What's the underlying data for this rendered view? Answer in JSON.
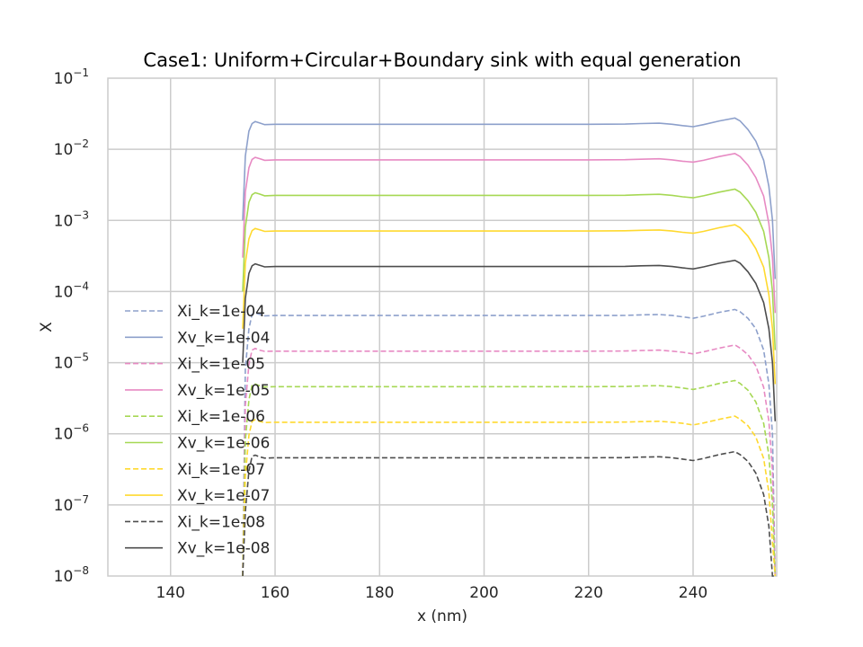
{
  "chart_data": {
    "type": "line",
    "title": "Case1: Uniform+Circular+Boundary sink with equal generation",
    "xlabel": "x (nm)",
    "ylabel": "X",
    "xlim": [
      128,
      256
    ],
    "ylim_log10": [
      -8,
      -1
    ],
    "y_scale": "log",
    "grid": true,
    "legend_position": "lower-left",
    "x_ticks": [
      140,
      160,
      180,
      200,
      220,
      240
    ],
    "y_tick_exponents": [
      -8,
      -7,
      -6,
      -5,
      -4,
      -3,
      -2,
      -1
    ],
    "x_profile": [
      153.8,
      154.3,
      155.0,
      155.6,
      156.2,
      157.0,
      158.0,
      160.0,
      165.0,
      180.0,
      200.0,
      220.0,
      227.0,
      230.0,
      233.5,
      236.0,
      238.0,
      240.0,
      242.0,
      245.0,
      248.0,
      249.0,
      250.5,
      252.0,
      253.5,
      254.5,
      255.2,
      255.7
    ],
    "series": [
      {
        "name": "Xi_k=1e-04",
        "style": "dashed",
        "color": "#8da0cb",
        "values": [
          1e-08,
          8e-06,
          3e-05,
          4.8e-05,
          5e-05,
          4.8e-05,
          4.55e-05,
          4.6e-05,
          4.6e-05,
          4.6e-05,
          4.6e-05,
          4.6e-05,
          4.62e-05,
          4.7e-05,
          4.75e-05,
          4.6e-05,
          4.4e-05,
          4.2e-05,
          4.5e-05,
          5.1e-05,
          5.6e-05,
          5.2e-05,
          4.2e-05,
          3e-05,
          1.5e-05,
          5e-06,
          1e-06,
          1e-08
        ]
      },
      {
        "name": "Xv_k=1e-04",
        "style": "solid",
        "color": "#8da0cb",
        "values": [
          0.001,
          0.008,
          0.018,
          0.023,
          0.0245,
          0.0235,
          0.0222,
          0.0225,
          0.0225,
          0.0225,
          0.0225,
          0.0225,
          0.0226,
          0.023,
          0.0233,
          0.0225,
          0.0215,
          0.0208,
          0.0222,
          0.025,
          0.0275,
          0.025,
          0.019,
          0.013,
          0.007,
          0.003,
          0.001,
          0.00015
        ]
      },
      {
        "name": "Xi_k=1e-05",
        "style": "dashed",
        "color": "#e78ac3",
        "values": [
          1e-08,
          2.5e-06,
          9.5e-06,
          1.5e-05,
          1.58e-05,
          1.5e-05,
          1.44e-05,
          1.45e-05,
          1.45e-05,
          1.45e-05,
          1.45e-05,
          1.45e-05,
          1.46e-05,
          1.48e-05,
          1.5e-05,
          1.45e-05,
          1.4e-05,
          1.33e-05,
          1.42e-05,
          1.6e-05,
          1.77e-05,
          1.6e-05,
          1.3e-05,
          9e-06,
          4.5e-06,
          1.5e-06,
          3e-07,
          1e-08
        ]
      },
      {
        "name": "Xv_k=1e-05",
        "style": "solid",
        "color": "#e78ac3",
        "values": [
          0.0003,
          0.0025,
          0.0055,
          0.0072,
          0.0077,
          0.0074,
          0.007,
          0.0071,
          0.0071,
          0.0071,
          0.0071,
          0.0071,
          0.00715,
          0.00725,
          0.00735,
          0.0071,
          0.0068,
          0.0066,
          0.007,
          0.0079,
          0.0087,
          0.0079,
          0.006,
          0.004,
          0.0022,
          0.0009,
          0.0003,
          5e-05
        ]
      },
      {
        "name": "Xi_k=1e-06",
        "style": "dashed",
        "color": "#a6d854",
        "values": [
          1e-08,
          8e-07,
          3e-06,
          4.8e-06,
          5e-06,
          4.75e-06,
          4.55e-06,
          4.6e-06,
          4.6e-06,
          4.6e-06,
          4.6e-06,
          4.6e-06,
          4.62e-06,
          4.7e-06,
          4.75e-06,
          4.6e-06,
          4.4e-06,
          4.2e-06,
          4.5e-06,
          5.1e-06,
          5.6e-06,
          5.1e-06,
          4.1e-06,
          2.8e-06,
          1.4e-06,
          5e-07,
          1e-07,
          1e-08
        ]
      },
      {
        "name": "Xv_k=1e-06",
        "style": "solid",
        "color": "#a6d854",
        "values": [
          0.0001,
          0.0008,
          0.0018,
          0.0023,
          0.00245,
          0.00235,
          0.00222,
          0.00225,
          0.00225,
          0.00225,
          0.00225,
          0.00225,
          0.00226,
          0.0023,
          0.00233,
          0.00225,
          0.00215,
          0.00208,
          0.00222,
          0.0025,
          0.00275,
          0.0025,
          0.0019,
          0.0013,
          0.0007,
          0.0003,
          0.0001,
          1.5e-05
        ]
      },
      {
        "name": "Xi_k=1e-07",
        "style": "dashed",
        "color": "#ffd92f",
        "values": [
          1e-08,
          2.5e-07,
          9.5e-07,
          1.5e-06,
          1.58e-06,
          1.5e-06,
          1.44e-06,
          1.45e-06,
          1.45e-06,
          1.45e-06,
          1.45e-06,
          1.45e-06,
          1.46e-06,
          1.48e-06,
          1.5e-06,
          1.45e-06,
          1.4e-06,
          1.33e-06,
          1.42e-06,
          1.6e-06,
          1.77e-06,
          1.6e-06,
          1.3e-06,
          9e-07,
          4.5e-07,
          1.5e-07,
          3e-08,
          1e-08
        ]
      },
      {
        "name": "Xv_k=1e-07",
        "style": "solid",
        "color": "#ffd92f",
        "values": [
          3e-05,
          0.00025,
          0.00055,
          0.00072,
          0.00077,
          0.00074,
          0.0007,
          0.00071,
          0.00071,
          0.00071,
          0.00071,
          0.00071,
          0.000715,
          0.000725,
          0.000735,
          0.00071,
          0.00068,
          0.00066,
          0.0007,
          0.00079,
          0.00087,
          0.00079,
          0.0006,
          0.0004,
          0.00022,
          9e-05,
          3e-05,
          5e-06
        ]
      },
      {
        "name": "Xi_k=1e-08",
        "style": "dashed",
        "color": "#4d4d4d",
        "values": [
          1e-08,
          8e-08,
          3e-07,
          4.8e-07,
          5e-07,
          4.75e-07,
          4.55e-07,
          4.6e-07,
          4.6e-07,
          4.6e-07,
          4.6e-07,
          4.6e-07,
          4.62e-07,
          4.7e-07,
          4.75e-07,
          4.6e-07,
          4.4e-07,
          4.2e-07,
          4.5e-07,
          5.1e-07,
          5.6e-07,
          5.1e-07,
          4.1e-07,
          2.8e-07,
          1.4e-07,
          5e-08,
          1e-08,
          1e-08
        ]
      },
      {
        "name": "Xv_k=1e-08",
        "style": "solid",
        "color": "#4d4d4d",
        "values": [
          1e-05,
          8e-05,
          0.00018,
          0.00023,
          0.000245,
          0.000235,
          0.000222,
          0.000225,
          0.000225,
          0.000225,
          0.000225,
          0.000225,
          0.000226,
          0.00023,
          0.000233,
          0.000225,
          0.000215,
          0.000208,
          0.000222,
          0.00025,
          0.000275,
          0.00025,
          0.00019,
          0.00013,
          7e-05,
          3e-05,
          1e-05,
          1.5e-06
        ]
      }
    ]
  }
}
